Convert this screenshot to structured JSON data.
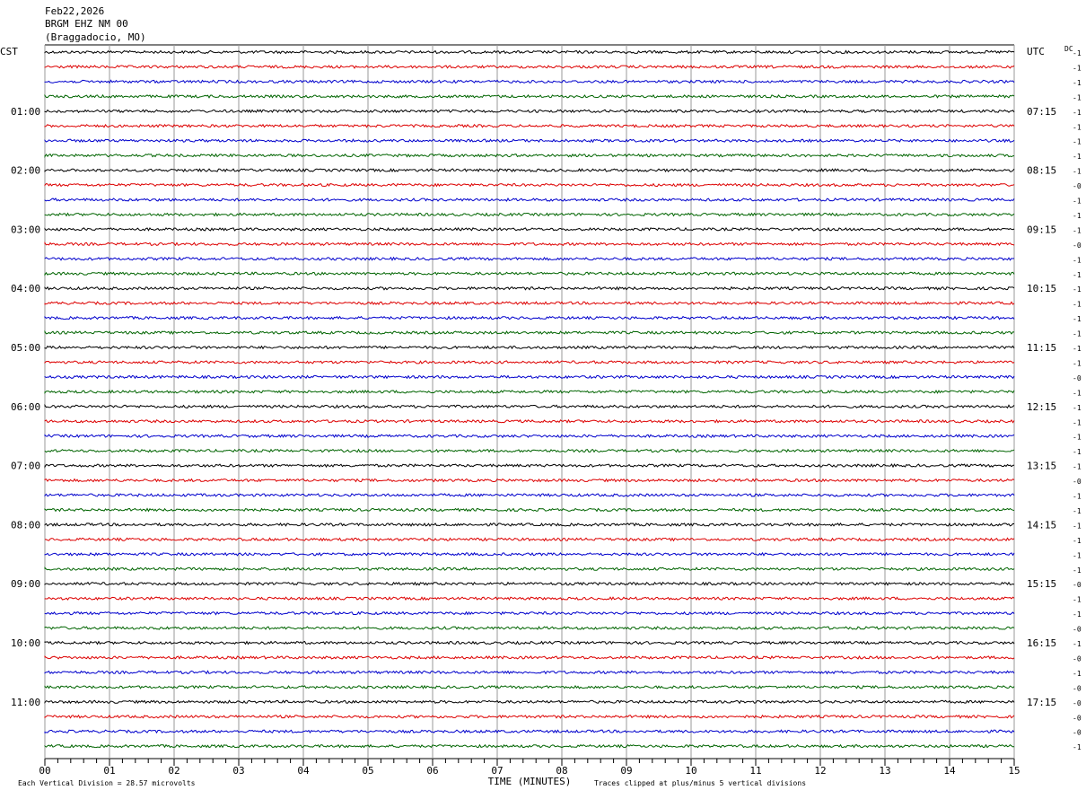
{
  "header": {
    "date": "Feb22,2026",
    "station": "BRGM EHZ NM 00",
    "location": "(Braggadocio, MO)"
  },
  "left_zone": "CST",
  "right_zone": "UTC",
  "dc_label": "DC",
  "left_labels": [
    "01:00",
    "02:00",
    "03:00",
    "04:00",
    "05:00",
    "06:00",
    "07:00",
    "08:00",
    "09:00",
    "10:00",
    "11:00"
  ],
  "right_labels": [
    "07:15",
    "08:15",
    "09:15",
    "10:15",
    "11:15",
    "12:15",
    "13:15",
    "14:15",
    "15:15",
    "16:15",
    "17:15"
  ],
  "dc_values": [
    "-1",
    "-1",
    "-1",
    "-1",
    "-1",
    "-1",
    "-1",
    "-1",
    "-1",
    "-0",
    "-1",
    "-1",
    "-1",
    "-0",
    "-1",
    "-1",
    "-1",
    "-1",
    "-1",
    "-1",
    "-1",
    "-1",
    "-0",
    "-1",
    "-1",
    "-1",
    "-1",
    "-1",
    "-1",
    "-0",
    "-1",
    "-1",
    "-1",
    "-1",
    "-1",
    "-1",
    "-0",
    "-1",
    "-1",
    "-0",
    "-1",
    "-0",
    "-1",
    "-0",
    "-0",
    "-0",
    "-0",
    "-1"
  ],
  "x_ticks": [
    "00",
    "01",
    "02",
    "03",
    "04",
    "05",
    "06",
    "07",
    "08",
    "09",
    "10",
    "11",
    "12",
    "13",
    "14",
    "15"
  ],
  "x_label": "TIME (MINUTES)",
  "footer": {
    "scale": "Each Vertical Division =   28.57 microvolts",
    "clip": "Traces clipped at plus/minus 5 vertical divisions"
  }
}
